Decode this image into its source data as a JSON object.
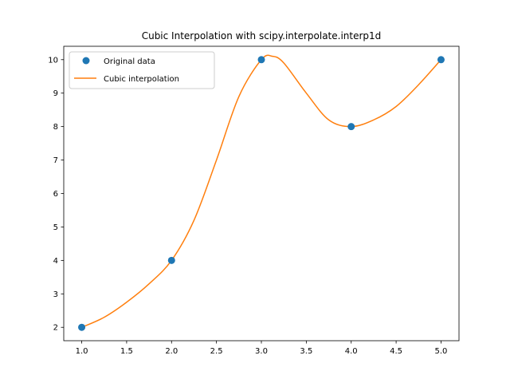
{
  "chart_data": {
    "type": "line",
    "title": "Cubic Interpolation with scipy.interpolate.interp1d",
    "xlabel": "",
    "ylabel": "",
    "xlim": [
      0.8,
      5.2
    ],
    "ylim": [
      1.6,
      10.4
    ],
    "xticks": [
      1.0,
      1.5,
      2.0,
      2.5,
      3.0,
      3.5,
      4.0,
      4.5,
      5.0
    ],
    "xtick_labels": [
      "1.0",
      "1.5",
      "2.0",
      "2.5",
      "3.0",
      "3.5",
      "4.0",
      "4.5",
      "5.0"
    ],
    "yticks": [
      2,
      3,
      4,
      5,
      6,
      7,
      8,
      9,
      10
    ],
    "ytick_labels": [
      "2",
      "3",
      "4",
      "5",
      "6",
      "7",
      "8",
      "9",
      "10"
    ],
    "grid": false,
    "legend_position": "upper-left",
    "series": [
      {
        "name": "Original data",
        "kind": "scatter",
        "color": "#1f77b4",
        "x": [
          1,
          2,
          3,
          4,
          5
        ],
        "y": [
          2,
          4,
          10,
          8,
          10
        ]
      },
      {
        "name": "Cubic interpolation",
        "kind": "line",
        "color": "#ff7f0e",
        "x": [
          1.0,
          1.25,
          1.5,
          1.75,
          2.0,
          2.25,
          2.5,
          2.75,
          3.0,
          3.125,
          3.25,
          3.5,
          3.75,
          4.0,
          4.25,
          4.5,
          4.75,
          5.0
        ],
        "y": [
          2.0,
          2.3,
          2.75,
          3.3,
          4.0,
          5.2,
          7.0,
          8.9,
          10.0,
          10.1,
          9.9,
          9.0,
          8.2,
          8.0,
          8.2,
          8.6,
          9.25,
          10.0
        ]
      }
    ]
  }
}
